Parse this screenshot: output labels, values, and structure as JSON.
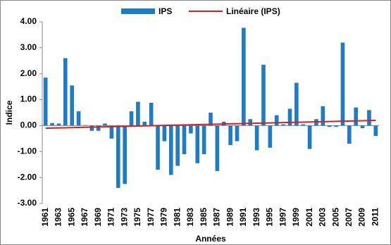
{
  "chart_data": {
    "type": "bar",
    "x_label": "Années",
    "y_label": "Indice",
    "categories": [
      "1961",
      null,
      "1963",
      null,
      "1965",
      null,
      "1967",
      null,
      "1969",
      null,
      "1971",
      null,
      "1973",
      null,
      "1975",
      null,
      "1977",
      null,
      "1979",
      null,
      "1981",
      null,
      "1983",
      null,
      "1985",
      null,
      "1987",
      null,
      "1989",
      null,
      "1991",
      null,
      "1993",
      null,
      "1995",
      null,
      "1997",
      null,
      "1999",
      null,
      "2001",
      null,
      "2003",
      null,
      "2005",
      null,
      "2007",
      null,
      "2009",
      null,
      "2011"
    ],
    "series": [
      {
        "name": "IPS",
        "type": "bar",
        "color": "#1f7bc4",
        "values": [
          1.85,
          0.1,
          0.08,
          2.6,
          1.55,
          0.55,
          0.02,
          -0.2,
          -0.2,
          0.08,
          -0.5,
          -2.4,
          -2.25,
          0.55,
          0.92,
          0.15,
          0.88,
          -1.7,
          -0.6,
          -1.9,
          -1.55,
          -1.1,
          -0.3,
          -1.45,
          -1.1,
          0.5,
          -1.75,
          0.15,
          -0.75,
          -0.6,
          3.77,
          0.25,
          -0.95,
          2.35,
          -0.85,
          0.4,
          0.05,
          0.65,
          1.65,
          0.05,
          -0.9,
          0.25,
          0.75,
          -0.05,
          -0.05,
          3.2,
          -0.7,
          0.7,
          -0.1,
          0.6,
          -0.4
        ]
      },
      {
        "name": "Linéaire (IPS)",
        "type": "line",
        "color": "#d42020",
        "values": [
          -0.1,
          -0.094,
          -0.088,
          -0.082,
          -0.076,
          -0.07,
          -0.064,
          -0.058,
          -0.052,
          -0.046,
          -0.04,
          -0.034,
          -0.028,
          -0.022,
          -0.016,
          -0.01,
          -0.004,
          0.002,
          0.008,
          0.014,
          0.02,
          0.026,
          0.032,
          0.038,
          0.044,
          0.05,
          0.056,
          0.062,
          0.068,
          0.074,
          0.08,
          0.086,
          0.092,
          0.098,
          0.104,
          0.11,
          0.116,
          0.122,
          0.128,
          0.134,
          0.14,
          0.146,
          0.152,
          0.158,
          0.164,
          0.17,
          0.176,
          0.182,
          0.188,
          0.194,
          0.2
        ]
      }
    ],
    "ylim": [
      -3,
      4
    ],
    "yticks": [
      {
        "value": 4,
        "label": "4.00"
      },
      {
        "value": 3,
        "label": "3.00"
      },
      {
        "value": 2,
        "label": "2.00"
      },
      {
        "value": 1,
        "label": "1.00"
      },
      {
        "value": 0,
        "label": "0.00"
      },
      {
        "value": -1,
        "label": "-1.00"
      },
      {
        "value": -2,
        "label": "-2.00"
      },
      {
        "value": -3,
        "label": "-3.00"
      }
    ],
    "grid": false,
    "legend": "top"
  }
}
